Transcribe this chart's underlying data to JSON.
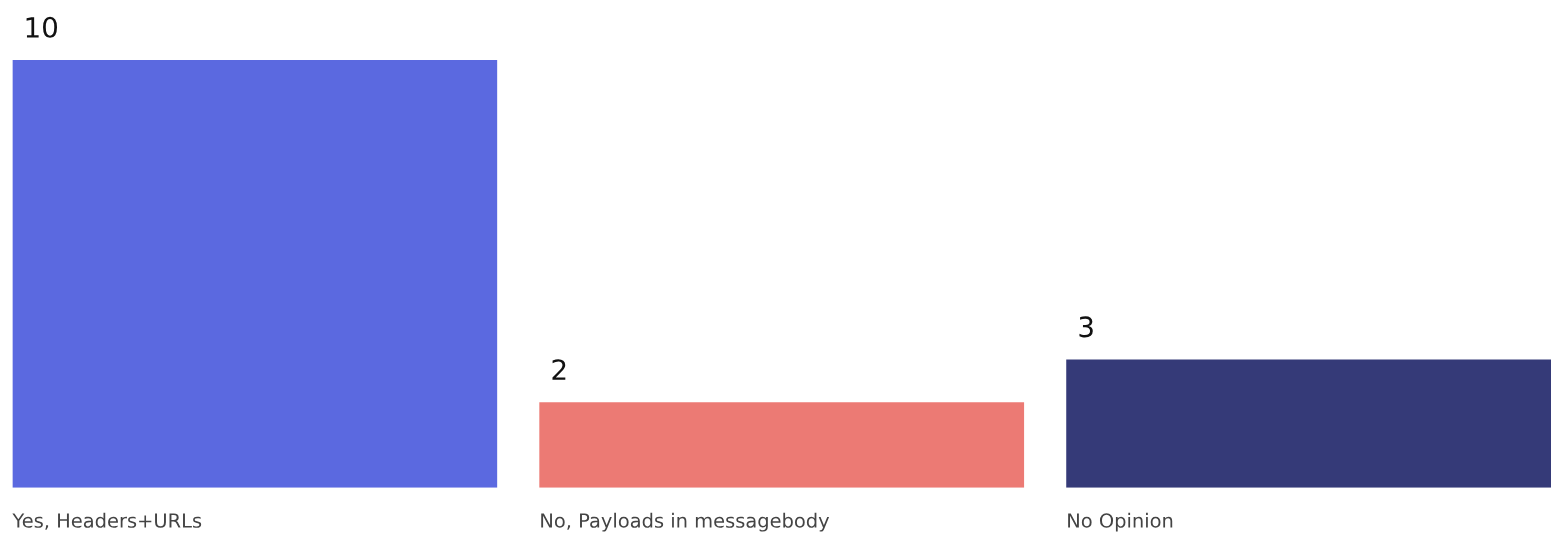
{
  "chart_data": {
    "type": "bar",
    "categories": [
      "Yes, Headers+URLs",
      "No, Payloads in messagebody",
      "No Opinion"
    ],
    "values": [
      10,
      2,
      3
    ],
    "colors": [
      "#5b69e0",
      "#ec7a74",
      "#353a78"
    ],
    "data_labels": true,
    "legend": false
  }
}
